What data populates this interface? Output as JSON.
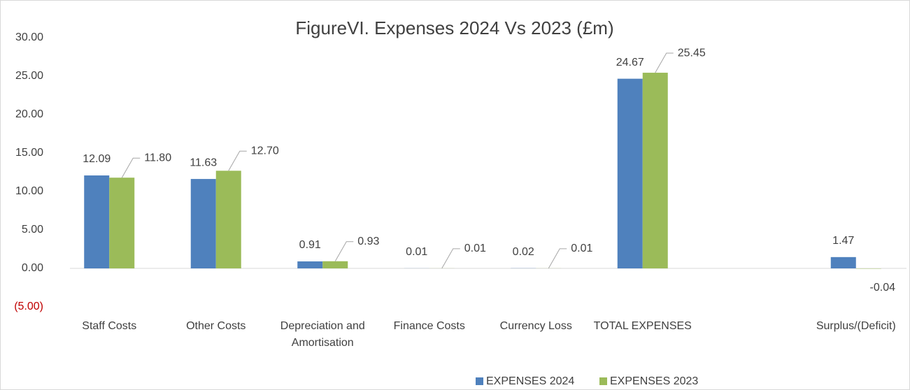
{
  "chart_data": {
    "type": "bar",
    "title": "FigureVI. Expenses 2024 Vs 2023 (£m)",
    "categories": [
      "Staff Costs",
      "Other Costs",
      "Depreciation and Amortisation",
      "Finance Costs",
      "Currency Loss",
      "TOTAL EXPENSES",
      null,
      "Surplus/(Deficit)"
    ],
    "series": [
      {
        "name": "EXPENSES 2024",
        "color": "#4f81bd",
        "values": [
          12.09,
          11.63,
          0.91,
          0.01,
          0.02,
          24.67,
          null,
          1.47
        ],
        "value_labels": [
          "12.09",
          "11.63",
          "0.91",
          "0.01",
          "0.02",
          "24.67",
          null,
          "1.47"
        ]
      },
      {
        "name": "EXPENSES 2023",
        "color": "#9bbb59",
        "values": [
          11.8,
          12.7,
          0.93,
          0.01,
          0.01,
          25.45,
          null,
          -0.04
        ],
        "value_labels": [
          "11.80",
          "12.70",
          "0.93",
          "0.01",
          "0.01",
          "25.45",
          null,
          "-0.04"
        ]
      }
    ],
    "ylim": [
      -5,
      30
    ],
    "yticks": [
      {
        "value": -5,
        "label": "(5.00)"
      },
      {
        "value": 0,
        "label": "0.00"
      },
      {
        "value": 5,
        "label": "5.00"
      },
      {
        "value": 10,
        "label": "10.00"
      },
      {
        "value": 15,
        "label": "15.00"
      },
      {
        "value": 20,
        "label": "20.00"
      },
      {
        "value": 25,
        "label": "25.00"
      },
      {
        "value": 30,
        "label": "30.00"
      }
    ],
    "negative_tick_color": "#c00000",
    "grid": false,
    "legend": "bottom"
  }
}
